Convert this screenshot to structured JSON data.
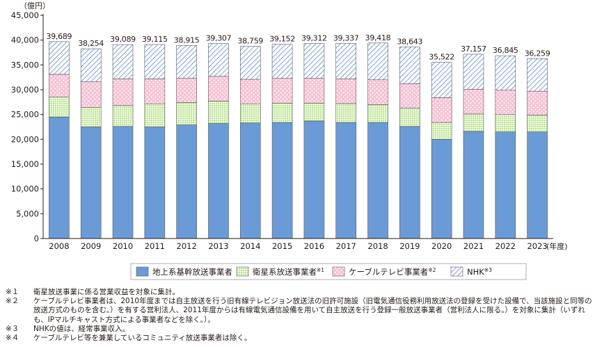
{
  "chart_data": {
    "type": "bar",
    "stacked": true,
    "unit_label": "（億円）",
    "year_unit": "(年度)",
    "categories": [
      "2008",
      "2009",
      "2010",
      "2011",
      "2012",
      "2013",
      "2014",
      "2015",
      "2016",
      "2017",
      "2018",
      "2019",
      "2020",
      "2021",
      "2022",
      "2023"
    ],
    "totals": [
      39689,
      38254,
      39089,
      39115,
      38915,
      39307,
      38759,
      39152,
      39312,
      39337,
      39418,
      38643,
      35522,
      37157,
      36845,
      36259
    ],
    "total_labels": [
      "39,689",
      "38,254",
      "39,089",
      "39,115",
      "38,915",
      "39,307",
      "38,759",
      "39,152",
      "39,312",
      "39,337",
      "39,418",
      "38,643",
      "35,522",
      "37,157",
      "36,845",
      "36,259"
    ],
    "ylim": [
      0,
      45000
    ],
    "yticks": [
      0,
      5000,
      10000,
      15000,
      20000,
      25000,
      30000,
      35000,
      40000,
      45000
    ],
    "ytick_labels": [
      "0",
      "5,000",
      "10,000",
      "15,000",
      "20,000",
      "25,000",
      "30,000",
      "35,000",
      "40,000",
      "45,000"
    ],
    "grid": false,
    "legend_position": "bottom",
    "series": [
      {
        "name": "地上系基幹放送事業者",
        "sup": "",
        "pattern": "solid",
        "color": "#6a9bd6",
        "values": [
          24500,
          22500,
          22600,
          22500,
          22900,
          23200,
          23300,
          23400,
          23700,
          23400,
          23400,
          22600,
          20000,
          21600,
          21500,
          21500
        ]
      },
      {
        "name": "衛星系放送事業者",
        "sup": "※1",
        "pattern": "grid",
        "color": "#b9e38c",
        "values": [
          4000,
          3900,
          4200,
          4600,
          4500,
          4500,
          3800,
          3900,
          3600,
          3800,
          3600,
          3700,
          3400,
          3500,
          3500,
          3400
        ]
      },
      {
        "name": "ケーブルテレビ事業者",
        "sup": "※2",
        "pattern": "dots",
        "color": "#f7c1d4",
        "values": [
          4600,
          5200,
          5400,
          5100,
          4900,
          5000,
          5000,
          5000,
          5000,
          5000,
          5000,
          4900,
          5000,
          5000,
          4900,
          4800
        ]
      },
      {
        "name": "NHK",
        "sup": "※3",
        "pattern": "hatch",
        "color": "#9fb8e3",
        "values": [
          6589,
          6654,
          6889,
          6915,
          6615,
          6607,
          6659,
          6852,
          7012,
          7137,
          7418,
          7443,
          7122,
          7057,
          6945,
          6559
        ]
      }
    ]
  },
  "notes": [
    {
      "mark": "※１",
      "text": "衛星放送事業に係る営業収益を対象に集計。"
    },
    {
      "mark": "※２",
      "text": "ケーブルテレビ事業者は、2010年度までは自主放送を行う旧有線テレビジョン放送法の旧許可施設（旧電気通信役務利用放送法の登録を受けた設備で、当該施設と同等の放送方式のものを含む。）を有する営利法人、2011年度からは有線電気通信設備を用いて自主放送を行う登録一般放送事業者（営利法人に限る。）を対象に集計（いずれも、IPマルチキャスト方式による事業者などを除く。）。"
    },
    {
      "mark": "※３",
      "text": "NHKの値は、経常事業収入。"
    },
    {
      "mark": "※４",
      "text": "ケーブルテレビ等を兼業しているコミュニティ放送事業者は除く。"
    }
  ]
}
